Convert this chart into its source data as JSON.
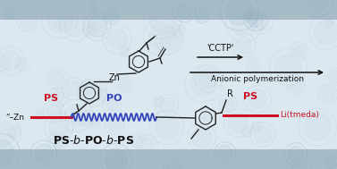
{
  "bg_color": "#c8d8e0",
  "band_top_color": "#a8bcc8",
  "band_bot_color": "#a8bcc8",
  "center_color": "#dce8f0",
  "ps_color": "#cc1122",
  "po_color": "#3344bb",
  "black_color": "#111111",
  "cctp_label": "'CCTP'",
  "anionic_label": "Anionic polymerization",
  "ps_label": "PS",
  "po_label": "PO",
  "zn_label": "Zn",
  "r_label": "R",
  "li_label": "Li(tmeda)",
  "zn_left_label": "“–Zn",
  "title": "PS-b-PO-b-PS",
  "circle_color": "#8aaabb"
}
